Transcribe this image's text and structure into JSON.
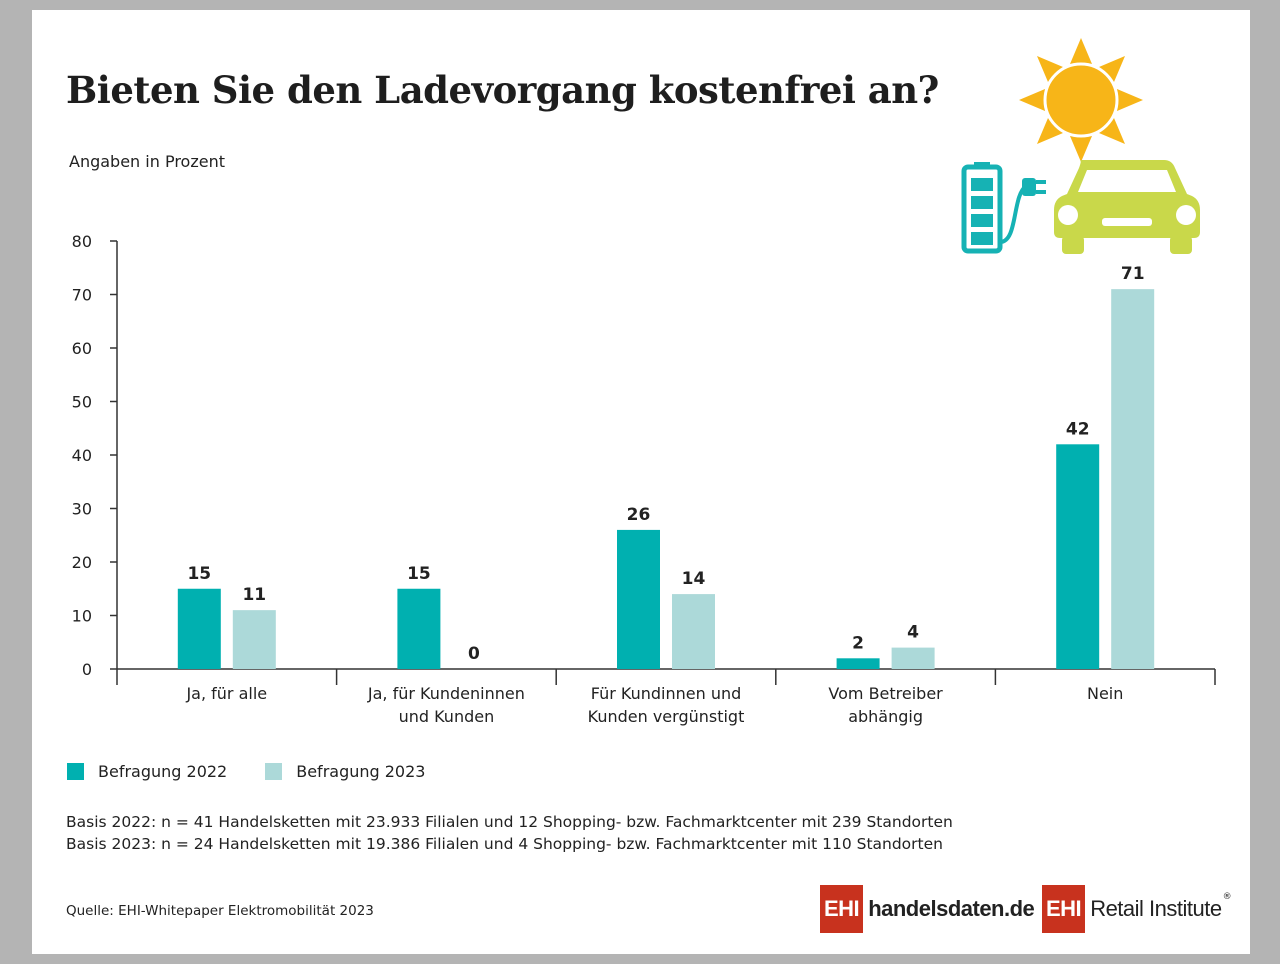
{
  "title": "Bieten Sie den Ladevorgang kostenfrei an?",
  "subtitle": "Angaben in Prozent",
  "colors": {
    "series_2022": "#00b0b0",
    "series_2023": "#acd9d9",
    "axis": "#333333",
    "sun": "#f7b518",
    "car": "#c9d84a",
    "battery": "#16b2b4",
    "logo_red": "#c8321e"
  },
  "chart_data": {
    "type": "bar",
    "categories": [
      "Ja, für alle",
      "Ja, für Kundeninnen und Kunden",
      "Für Kundinnen und Kunden vergünstigt",
      "Vom Betreiber abhängig",
      "Nein"
    ],
    "category_lines": [
      [
        "Ja, für alle"
      ],
      [
        "Ja, für Kundeninnen",
        "und Kunden"
      ],
      [
        "Für Kundinnen und",
        "Kunden vergünstigt"
      ],
      [
        "Vom Betreiber",
        "abhängig"
      ],
      [
        "Nein"
      ]
    ],
    "series": [
      {
        "name": "Befragung 2022",
        "values": [
          15,
          15,
          26,
          2,
          42
        ]
      },
      {
        "name": "Befragung 2023",
        "values": [
          11,
          0,
          14,
          4,
          71
        ]
      }
    ],
    "ylim": [
      0,
      80
    ],
    "yticks": [
      0,
      10,
      20,
      30,
      40,
      50,
      60,
      70,
      80
    ],
    "xlabel": "",
    "ylabel": "",
    "legend_position": "bottom-left",
    "grid": false
  },
  "legend": {
    "item1": "Befragung 2022",
    "item2": "Befragung 2023"
  },
  "notes": {
    "basis_2022": "Basis 2022: n = 41 Handelsketten mit 23.933 Filialen und 12 Shopping- bzw. Fachmarktcenter mit 239 Standorten",
    "basis_2023": "Basis 2023: n = 24 Handelsketten mit 19.386 Filialen und 4 Shopping- bzw. Fachmarktcenter mit 110 Standorten"
  },
  "source": "Quelle: EHI-Whitepaper Elektromobilität 2023",
  "logos": {
    "logo1_box": "EHI",
    "logo1_text": "handelsdaten.de",
    "logo2_box": "EHI",
    "logo2_text": "Retail Institute",
    "logo2_mark": "®"
  },
  "icons": [
    "sun-icon",
    "battery-icon",
    "charging-plug-icon",
    "car-icon"
  ]
}
